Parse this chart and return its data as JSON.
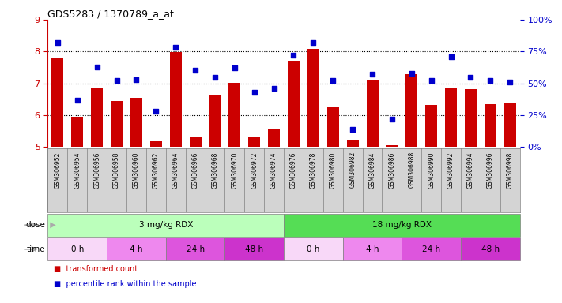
{
  "title": "GDS5283 / 1370789_a_at",
  "samples": [
    "GSM306952",
    "GSM306954",
    "GSM306956",
    "GSM306958",
    "GSM306960",
    "GSM306962",
    "GSM306964",
    "GSM306966",
    "GSM306968",
    "GSM306970",
    "GSM306972",
    "GSM306974",
    "GSM306976",
    "GSM306978",
    "GSM306980",
    "GSM306982",
    "GSM306984",
    "GSM306986",
    "GSM306988",
    "GSM306990",
    "GSM306992",
    "GSM306994",
    "GSM306996",
    "GSM306998"
  ],
  "transformed_count": [
    7.8,
    5.95,
    6.85,
    6.45,
    6.55,
    5.18,
    7.98,
    5.3,
    6.62,
    7.02,
    5.3,
    5.55,
    7.72,
    8.08,
    6.27,
    5.22,
    7.12,
    5.05,
    7.28,
    6.33,
    6.85,
    6.82,
    6.35,
    6.4
  ],
  "percentile_rank": [
    82,
    37,
    63,
    52,
    53,
    28,
    78,
    60,
    55,
    62,
    43,
    46,
    72,
    82,
    52,
    14,
    57,
    22,
    58,
    52,
    71,
    55,
    52,
    51
  ],
  "ylim_left": [
    5,
    9
  ],
  "ylim_right": [
    0,
    100
  ],
  "yticks_left": [
    5,
    6,
    7,
    8,
    9
  ],
  "yticks_right": [
    0,
    25,
    50,
    75,
    100
  ],
  "bar_color": "#cc0000",
  "dot_color": "#0000cc",
  "bg_color": "#ffffff",
  "label_bg": "#d4d4d4",
  "dose_groups": [
    {
      "label": "3 mg/kg RDX",
      "start": 0,
      "end": 12,
      "color": "#bbffbb"
    },
    {
      "label": "18 mg/kg RDX",
      "start": 12,
      "end": 24,
      "color": "#55dd55"
    }
  ],
  "time_groups": [
    {
      "label": "0 h",
      "start": 0,
      "end": 3,
      "color": "#f8d8f8"
    },
    {
      "label": "4 h",
      "start": 3,
      "end": 6,
      "color": "#ee88ee"
    },
    {
      "label": "24 h",
      "start": 6,
      "end": 9,
      "color": "#dd55dd"
    },
    {
      "label": "48 h",
      "start": 9,
      "end": 12,
      "color": "#cc33cc"
    },
    {
      "label": "0 h",
      "start": 12,
      "end": 15,
      "color": "#f8d8f8"
    },
    {
      "label": "4 h",
      "start": 15,
      "end": 18,
      "color": "#ee88ee"
    },
    {
      "label": "24 h",
      "start": 18,
      "end": 21,
      "color": "#dd55dd"
    },
    {
      "label": "48 h",
      "start": 21,
      "end": 24,
      "color": "#cc33cc"
    }
  ],
  "legend_items": [
    {
      "label": "transformed count",
      "color": "#cc0000",
      "marker": "s"
    },
    {
      "label": "percentile rank within the sample",
      "color": "#0000cc",
      "marker": "s"
    }
  ],
  "arrow_color": "#aaaaaa",
  "grid_lines": [
    6,
    7,
    8
  ]
}
